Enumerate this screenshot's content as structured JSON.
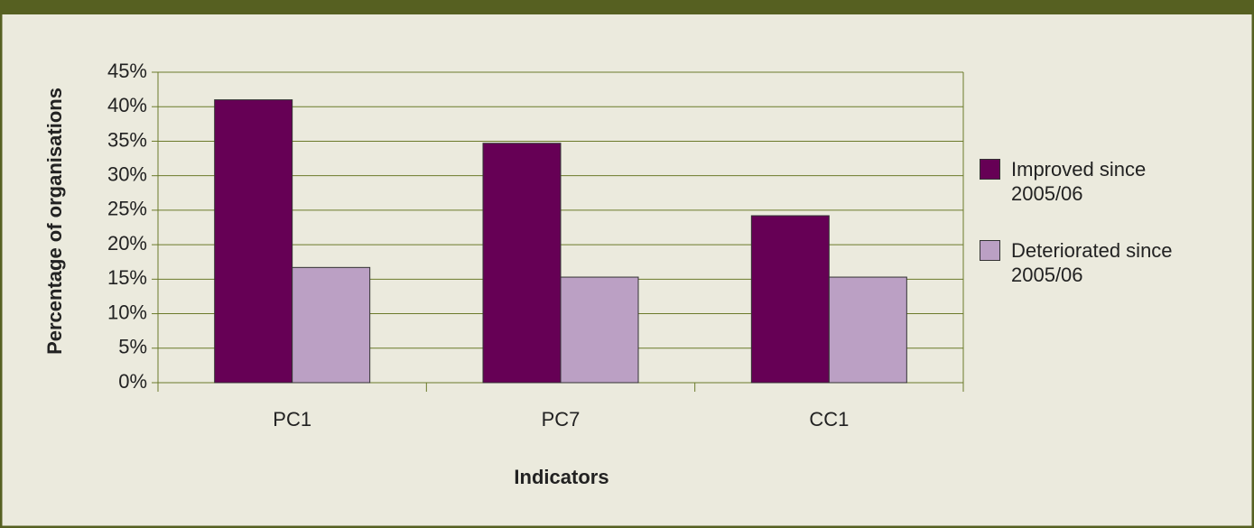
{
  "chart_data": {
    "type": "bar",
    "x_label": "Indicators",
    "y_label": "Percentage of organisations",
    "categories": [
      "PC1",
      "PC7",
      "CC1"
    ],
    "series": [
      {
        "name": "Improved since 2005/06",
        "color": "#660055",
        "values": [
          41,
          34.7,
          24.2
        ]
      },
      {
        "name": "Deteriorated since 2005/06",
        "color": "#bba0c4",
        "values": [
          16.7,
          15.3,
          15.3
        ]
      }
    ],
    "ylim": [
      0,
      45
    ],
    "yticks": [
      {
        "value": 0,
        "label": "0%"
      },
      {
        "value": 5,
        "label": "5%"
      },
      {
        "value": 10,
        "label": "10%"
      },
      {
        "value": 15,
        "label": "15%"
      },
      {
        "value": 20,
        "label": "20%"
      },
      {
        "value": 25,
        "label": "25%"
      },
      {
        "value": 30,
        "label": "30%"
      },
      {
        "value": 35,
        "label": "35%"
      },
      {
        "value": 40,
        "label": "40%"
      },
      {
        "value": 45,
        "label": "45%"
      }
    ],
    "grid": true
  }
}
